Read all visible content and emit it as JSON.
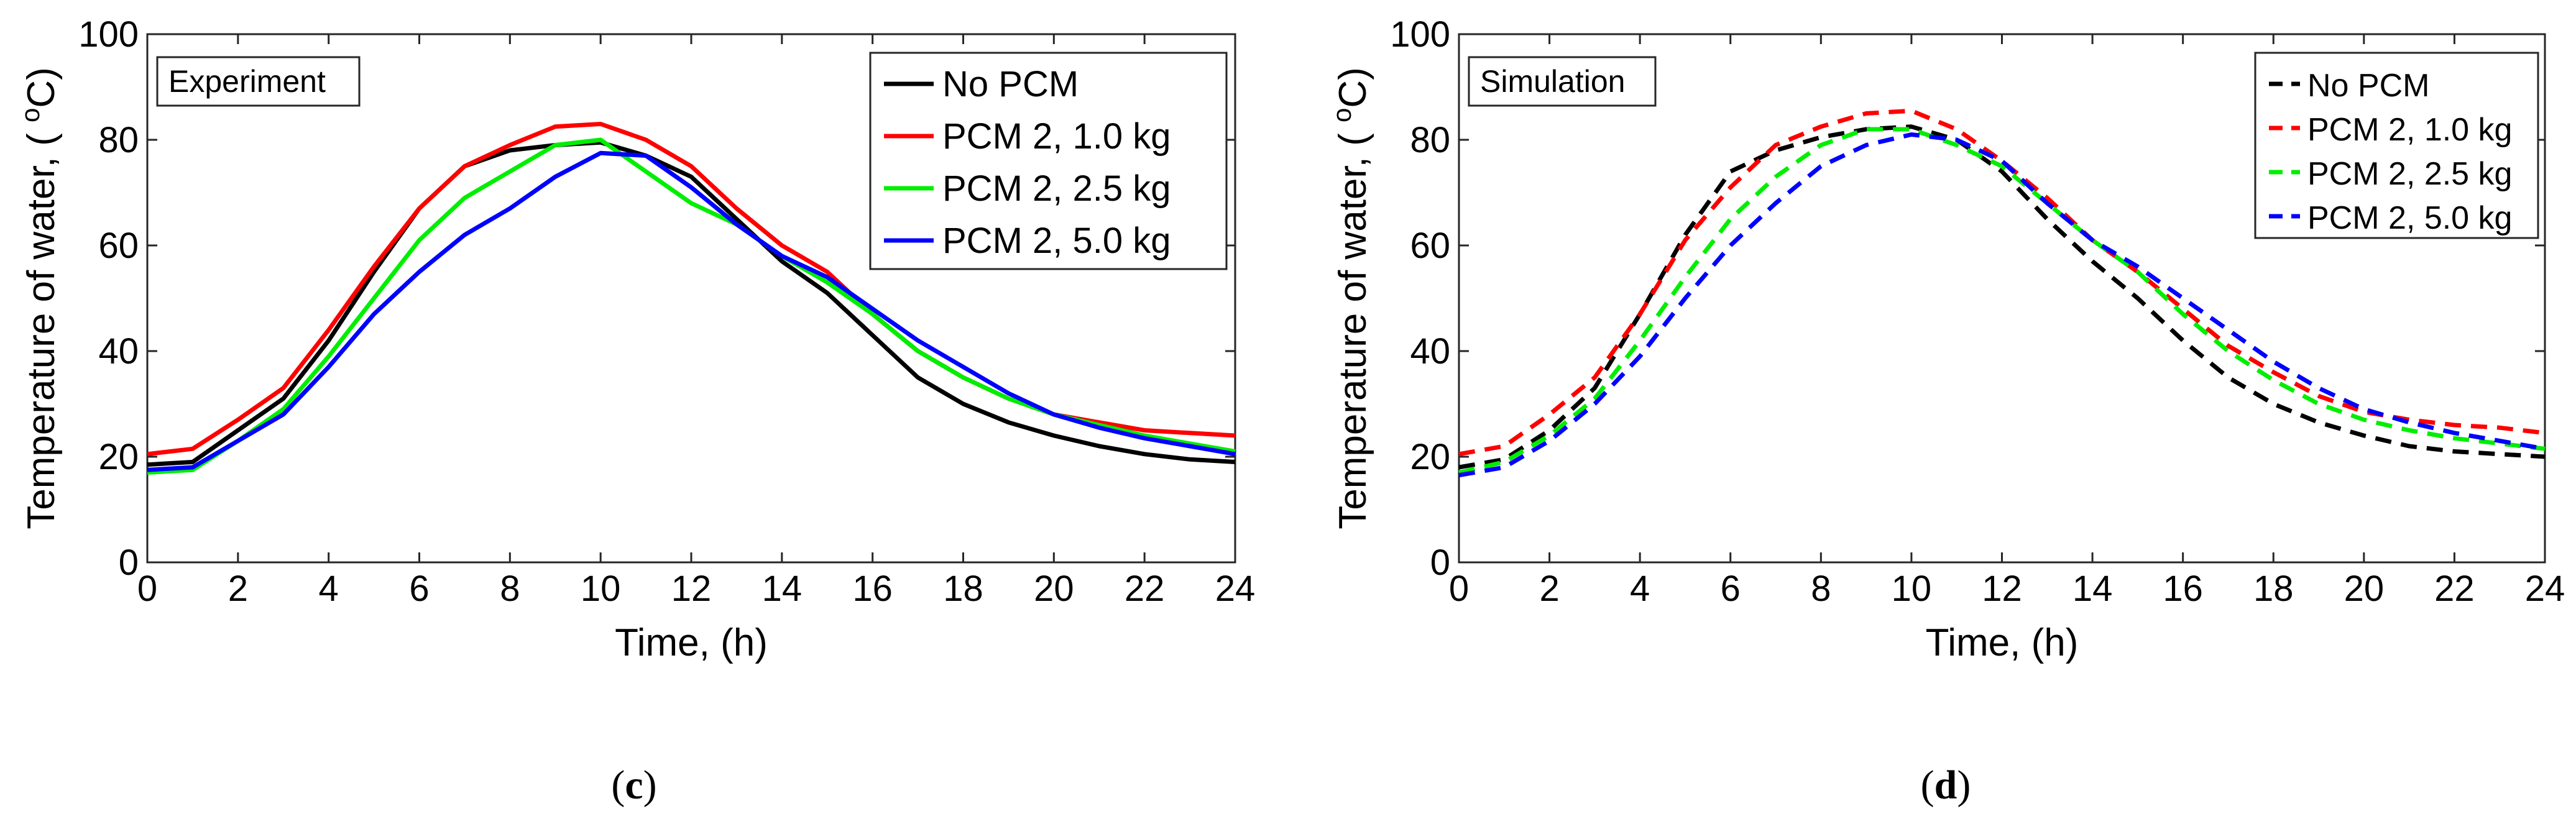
{
  "figure": {
    "captions": [
      {
        "letter": "c",
        "open": "(",
        "close": ")"
      },
      {
        "letter": "d",
        "open": "(",
        "close": ")"
      }
    ]
  },
  "chart_data": [
    {
      "type": "line",
      "panel": "c",
      "title": "",
      "box_label": "Experiment",
      "xlabel": "Time, (h)",
      "ylabel_main": "Temperature of water, ( ",
      "ylabel_sup": "o",
      "ylabel_tail": "C)",
      "xlim": [
        0,
        24
      ],
      "ylim": [
        0,
        100
      ],
      "xticks": [
        0,
        2,
        4,
        6,
        8,
        10,
        12,
        14,
        16,
        18,
        20,
        22,
        24
      ],
      "yticks": [
        0,
        20,
        40,
        60,
        80,
        100
      ],
      "grid": false,
      "legend_position": "top-right",
      "line_style": "solid",
      "series": [
        {
          "name": "No PCM",
          "color": "#000000",
          "x": [
            0,
            1,
            2,
            3,
            4,
            5,
            6,
            7,
            8,
            9,
            10,
            11,
            12,
            13,
            14,
            15,
            16,
            17,
            18,
            19,
            20,
            21,
            22,
            23,
            24
          ],
          "values": [
            18.5,
            19,
            25,
            31,
            42,
            55,
            67,
            75,
            78,
            79,
            79.5,
            77,
            73,
            65,
            57,
            51,
            43,
            35,
            30,
            26.5,
            24,
            22,
            20.5,
            19.5,
            19
          ]
        },
        {
          "name": "PCM 2, 1.0 kg",
          "color": "#ff0000",
          "x": [
            0,
            1,
            2,
            3,
            4,
            5,
            6,
            7,
            8,
            9,
            10,
            11,
            12,
            13,
            14,
            15,
            16,
            17,
            18,
            19,
            20,
            21,
            22,
            23,
            24
          ],
          "values": [
            20.5,
            21.5,
            27,
            33,
            44,
            56,
            67,
            75,
            79,
            82.5,
            83,
            80,
            75,
            67,
            60,
            55,
            47,
            40,
            35,
            31,
            28,
            26.5,
            25,
            24.5,
            24
          ]
        },
        {
          "name": "PCM 2, 2.5 kg",
          "color": "#00ee00",
          "x": [
            0,
            1,
            2,
            3,
            4,
            5,
            6,
            7,
            8,
            9,
            10,
            11,
            12,
            13,
            14,
            15,
            16,
            17,
            18,
            19,
            20,
            21,
            22,
            23,
            24
          ],
          "values": [
            17,
            17.5,
            23,
            29,
            39,
            50,
            61,
            69,
            74,
            79,
            80,
            74,
            68,
            64,
            58,
            53,
            47,
            40,
            35,
            31,
            28,
            26,
            24,
            22.5,
            21
          ]
        },
        {
          "name": "PCM 2, 5.0 kg",
          "color": "#0000ff",
          "x": [
            0,
            1,
            2,
            3,
            4,
            5,
            6,
            7,
            8,
            9,
            10,
            11,
            12,
            13,
            14,
            15,
            16,
            17,
            18,
            19,
            20,
            21,
            22,
            23,
            24
          ],
          "values": [
            17.5,
            18,
            23,
            28,
            37,
            47,
            55,
            62,
            67,
            73,
            77.5,
            77,
            71,
            64,
            58,
            54,
            48,
            42,
            37,
            32,
            28,
            25.5,
            23.5,
            22,
            20.5
          ]
        }
      ]
    },
    {
      "type": "line",
      "panel": "d",
      "title": "",
      "box_label": "Simulation",
      "xlabel": "Time, (h)",
      "ylabel_main": "Temperature of water, ( ",
      "ylabel_sup": "o",
      "ylabel_tail": "C)",
      "xlim": [
        0,
        24
      ],
      "ylim": [
        0,
        100
      ],
      "xticks": [
        0,
        2,
        4,
        6,
        8,
        10,
        12,
        14,
        16,
        18,
        20,
        22,
        24
      ],
      "yticks": [
        0,
        20,
        40,
        60,
        80,
        100
      ],
      "grid": false,
      "legend_position": "top-right",
      "line_style": "dashed",
      "series": [
        {
          "name": "No PCM",
          "color": "#000000",
          "x": [
            0,
            1,
            2,
            3,
            4,
            5,
            6,
            7,
            8,
            9,
            10,
            11,
            12,
            13,
            14,
            15,
            16,
            17,
            18,
            19,
            20,
            21,
            22,
            23,
            24
          ],
          "values": [
            18,
            19.5,
            25,
            33,
            47,
            62,
            74,
            78,
            80.5,
            82,
            82.5,
            80,
            74,
            65,
            57,
            50,
            42,
            35,
            30,
            26.5,
            24,
            22,
            21,
            20.5,
            20
          ]
        },
        {
          "name": "PCM 2, 1.0 kg",
          "color": "#ff0000",
          "x": [
            0,
            1,
            2,
            3,
            4,
            5,
            6,
            7,
            8,
            9,
            10,
            11,
            12,
            13,
            14,
            15,
            16,
            17,
            18,
            19,
            20,
            21,
            22,
            23,
            24
          ],
          "values": [
            20.5,
            22,
            28,
            35,
            47,
            61,
            71,
            79,
            82.5,
            85,
            85.5,
            82,
            76,
            69,
            61,
            55,
            48,
            41,
            36,
            31.5,
            28.5,
            27,
            26,
            25.5,
            24.5
          ]
        },
        {
          "name": "PCM 2, 2.5 kg",
          "color": "#00ee00",
          "x": [
            0,
            1,
            2,
            3,
            4,
            5,
            6,
            7,
            8,
            9,
            10,
            11,
            12,
            13,
            14,
            15,
            16,
            17,
            18,
            19,
            20,
            21,
            22,
            23,
            24
          ],
          "values": [
            17,
            19,
            24,
            31,
            42,
            54,
            65,
            73,
            79,
            82,
            82,
            79,
            75,
            68,
            61,
            55,
            47,
            40,
            34.5,
            30,
            27,
            25,
            23.5,
            22.5,
            21.5
          ]
        },
        {
          "name": "PCM 2, 5.0 kg",
          "color": "#0000ff",
          "x": [
            0,
            1,
            2,
            3,
            4,
            5,
            6,
            7,
            8,
            9,
            10,
            11,
            12,
            13,
            14,
            15,
            16,
            17,
            18,
            19,
            20,
            21,
            22,
            23,
            24
          ],
          "values": [
            16.5,
            18,
            23,
            30,
            39,
            50,
            60,
            68,
            75,
            79,
            81,
            80,
            76,
            68,
            61,
            56,
            50,
            44,
            38,
            33,
            29,
            26.5,
            24.5,
            23,
            21.5
          ]
        }
      ]
    }
  ]
}
